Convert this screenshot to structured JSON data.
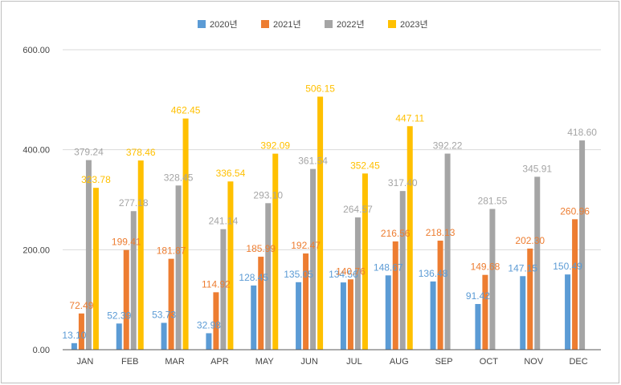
{
  "chart_data": {
    "type": "bar",
    "categories": [
      "JAN",
      "FEB",
      "MAR",
      "APR",
      "MAY",
      "JUN",
      "JUL",
      "AUG",
      "SEP",
      "OCT",
      "NOV",
      "DEC"
    ],
    "ylim": [
      0,
      600
    ],
    "yticks": [
      "0.00",
      "200.00",
      "400.00",
      "600.00"
    ],
    "grid": true,
    "legend_position": "top",
    "series": [
      {
        "name": "2020년",
        "color": "#5B9BD5",
        "values": [
          13.1,
          52.39,
          53.73,
          32.98,
          128.45,
          135.05,
          134.56,
          148.67,
          136.48,
          91.42,
          147.15,
          150.49
        ],
        "labels": [
          "13.10",
          "52.39",
          "53.73",
          "32.98",
          "128.45",
          "135.05",
          "134.56",
          "148.67",
          "136.48",
          "91.42",
          "147.15",
          "150.49"
        ]
      },
      {
        "name": "2021년",
        "color": "#ED7D31",
        "values": [
          72.49,
          199.41,
          181.87,
          114.92,
          185.99,
          192.47,
          140.76,
          216.56,
          218.13,
          149.68,
          202.3,
          260.96
        ],
        "labels": [
          "72.49",
          "199.41",
          "181.87",
          "114.92",
          "185.99",
          "192.47",
          "140.76",
          "216.56",
          "218.13",
          "149.68",
          "202.30",
          "260.96"
        ]
      },
      {
        "name": "2022년",
        "color": "#A5A5A5",
        "values": [
          379.24,
          277.18,
          328.45,
          241.14,
          293.1,
          361.54,
          264.57,
          317.4,
          392.22,
          281.55,
          345.91,
          418.6
        ],
        "labels": [
          "379.24",
          "277.18",
          "328.45",
          "241.14",
          "293.10",
          "361.54",
          "264.57",
          "317.40",
          "392.22",
          "281.55",
          "345.91",
          "418.60"
        ]
      },
      {
        "name": "2023년",
        "color": "#FFC000",
        "values": [
          323.78,
          378.46,
          462.45,
          336.54,
          392.09,
          506.15,
          352.45,
          447.11,
          null,
          null,
          null,
          null
        ],
        "labels": [
          "323.78",
          "378.46",
          "462.45",
          "336.54",
          "392.09",
          "506.15",
          "352.45",
          "447.11",
          null,
          null,
          null,
          null
        ]
      }
    ]
  }
}
